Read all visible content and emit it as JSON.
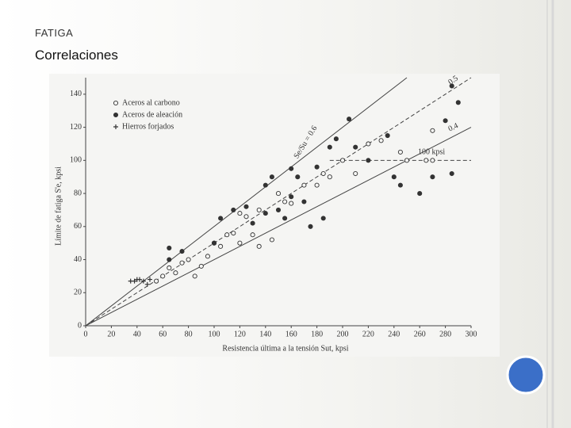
{
  "slide": {
    "section": "FATIGA",
    "title": "Correlaciones"
  },
  "chart_data": {
    "type": "scatter",
    "xlabel": "Resistencia última a la tensión Sut, kpsi",
    "ylabel": "Límite de fatiga S'e, kpsi",
    "xlim": [
      0,
      300
    ],
    "ylim": [
      0,
      150
    ],
    "xticks": [
      0,
      20,
      40,
      60,
      80,
      100,
      120,
      140,
      160,
      180,
      200,
      220,
      240,
      260,
      280,
      300
    ],
    "yticks": [
      0,
      20,
      40,
      60,
      80,
      100,
      120,
      140
    ],
    "legend": "upper left",
    "series": [
      {
        "name": "Aceros al carbono",
        "marker": "open-circle",
        "color": "#333333",
        "x": [
          55,
          60,
          65,
          70,
          75,
          80,
          85,
          90,
          95,
          100,
          105,
          110,
          115,
          120,
          120,
          125,
          130,
          135,
          135,
          145,
          150,
          155,
          160,
          170,
          180,
          185,
          190,
          200,
          210,
          220,
          230,
          245,
          250,
          265,
          270,
          270
        ],
        "values": [
          27,
          30,
          35,
          32,
          38,
          40,
          30,
          36,
          42,
          50,
          48,
          55,
          56,
          50,
          68,
          66,
          55,
          70,
          48,
          52,
          80,
          75,
          74,
          85,
          85,
          92,
          90,
          100,
          92,
          110,
          112,
          105,
          100,
          100,
          118,
          100
        ]
      },
      {
        "name": "Aceros de aleación",
        "marker": "filled-circle",
        "color": "#333333",
        "x": [
          65,
          65,
          75,
          100,
          105,
          115,
          125,
          130,
          140,
          140,
          145,
          150,
          155,
          160,
          160,
          165,
          170,
          175,
          180,
          185,
          190,
          195,
          205,
          210,
          220,
          235,
          240,
          245,
          260,
          270,
          280,
          285,
          285,
          290
        ],
        "values": [
          40,
          47,
          45,
          50,
          65,
          70,
          72,
          62,
          68,
          85,
          90,
          70,
          65,
          78,
          95,
          90,
          75,
          60,
          96,
          65,
          108,
          113,
          125,
          108,
          100,
          115,
          90,
          85,
          80,
          90,
          124,
          145,
          92,
          135
        ]
      },
      {
        "name": "Hierros forjados",
        "marker": "plus",
        "color": "#333333",
        "x": [
          35,
          38,
          40,
          42,
          45,
          48,
          50
        ],
        "values": [
          27,
          27,
          28,
          28,
          27,
          25,
          28
        ]
      }
    ],
    "reference_lines": [
      {
        "label": "Se/Su = 0.6",
        "x": [
          0,
          250
        ],
        "y": [
          0,
          150
        ],
        "dash": false
      },
      {
        "label": "0.5",
        "x": [
          0,
          300
        ],
        "y": [
          0,
          150
        ],
        "dash": true
      },
      {
        "label": "0.4",
        "x": [
          0,
          300
        ],
        "y": [
          0,
          120
        ],
        "dash": false
      },
      {
        "label": "100 kpsi",
        "x": [
          190,
          300
        ],
        "y": [
          100,
          100
        ],
        "dash": true
      }
    ]
  }
}
